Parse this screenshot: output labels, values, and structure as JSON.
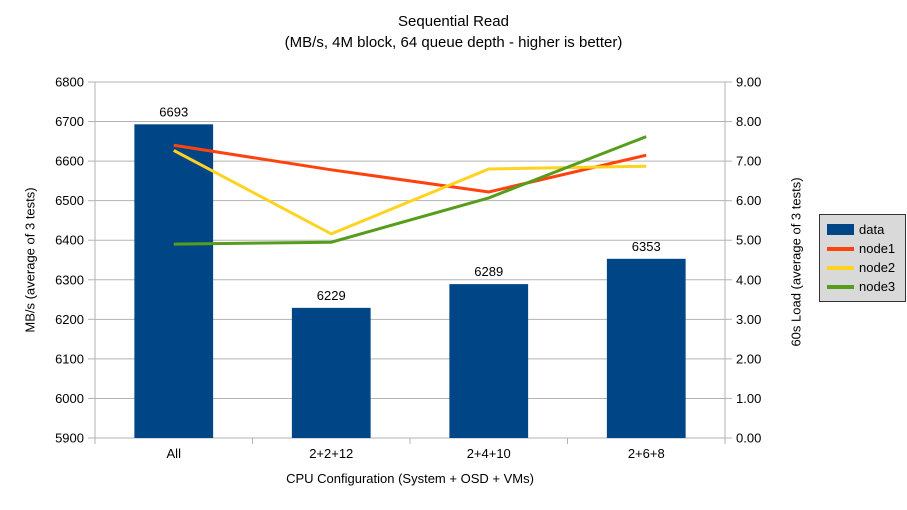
{
  "chart_data": {
    "type": "combo-bar-line",
    "title": "Sequential Read",
    "subtitle": "(MB/s, 4M block, 64 queue depth - higher is better)",
    "xlabel": "CPU Configuration (System + OSD + VMs)",
    "ylabel_left": "MB/s (average of 3 tests)",
    "ylabel_right": "60s Load (average of 3 tests)",
    "categories": [
      "All",
      "2+2+12",
      "2+4+10",
      "2+6+8"
    ],
    "bar_series": {
      "name": "data",
      "color": "#004586",
      "axis": "left",
      "values": [
        6693,
        6229,
        6289,
        6353
      ]
    },
    "line_series": [
      {
        "name": "node1",
        "color": "#ff420e",
        "axis": "right",
        "values": [
          7.4,
          6.78,
          6.22,
          7.15
        ]
      },
      {
        "name": "node2",
        "color": "#ffd320",
        "axis": "right",
        "values": [
          7.27,
          5.16,
          6.8,
          6.87
        ]
      },
      {
        "name": "node3",
        "color": "#579d1c",
        "axis": "right",
        "values": [
          4.9,
          4.95,
          6.07,
          7.62
        ]
      }
    ],
    "axis_left": {
      "min": 5900,
      "max": 6800,
      "step": 100
    },
    "axis_right": {
      "min": 0,
      "max": 9,
      "step": 1,
      "decimals": 2
    },
    "grid": true,
    "legend_position": "right",
    "colors": {
      "grid": "#b3b3b3",
      "axis": "#b3b3b3",
      "text": "#000000",
      "legend_bg": "#d9d9d9",
      "legend_border": "#333333",
      "background": "#ffffff"
    }
  }
}
